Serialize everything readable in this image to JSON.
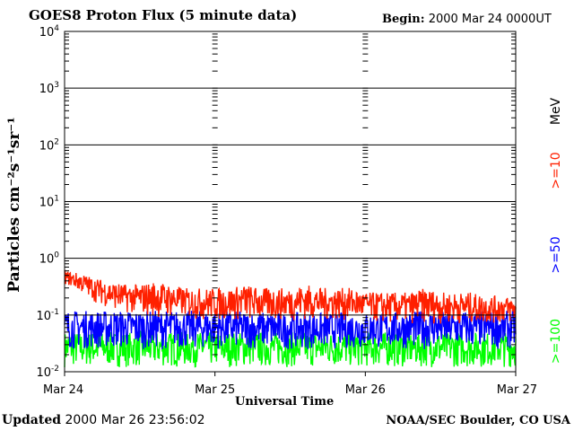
{
  "header": {
    "title": "GOES8 Proton Flux (5 minute data)",
    "begin_label": "Begin:",
    "begin_value": "2000 Mar 24 0000UT"
  },
  "footer": {
    "updated_label": "Updated",
    "updated_value": "2000 Mar 26 23:56:02",
    "credit": "NOAA/SEC Boulder, CO USA"
  },
  "legend": {
    "unit": "MeV",
    "items": [
      {
        "label": ">=10",
        "color": "#ff2000"
      },
      {
        "label": ">=50",
        "color": "#0000ff"
      },
      {
        "label": ">=100",
        "color": "#00ff00"
      }
    ]
  },
  "chart_data": {
    "type": "line",
    "title": "GOES8 Proton Flux (5 minute data)",
    "xlabel": "Universal Time",
    "ylabel": "Particles cm⁻²s⁻¹sr⁻¹",
    "yscale": "log",
    "ylim": [
      0.01,
      10000
    ],
    "y_ticks": [
      {
        "value": 0.01,
        "base": "10",
        "exp": "-2"
      },
      {
        "value": 0.1,
        "base": "10",
        "exp": "-1"
      },
      {
        "value": 1,
        "base": "10",
        "exp": "0"
      },
      {
        "value": 10,
        "base": "10",
        "exp": "1"
      },
      {
        "value": 100,
        "base": "10",
        "exp": "2"
      },
      {
        "value": 1000,
        "base": "10",
        "exp": "3"
      },
      {
        "value": 10000,
        "base": "10",
        "exp": "4"
      }
    ],
    "x_ticks": [
      "Mar 24",
      "Mar 25",
      "Mar 26",
      "Mar 27"
    ],
    "xlim_days": [
      0,
      3
    ],
    "grid": true,
    "series": [
      {
        "name": ">=10 MeV",
        "color": "#ff2000",
        "day": [
          0,
          0.1,
          0.2,
          0.3,
          0.4,
          0.5,
          0.6,
          0.7,
          0.8,
          0.9,
          1.0,
          1.1,
          1.2,
          1.3,
          1.4,
          1.5,
          1.6,
          1.7,
          1.8,
          1.9,
          2.0,
          2.1,
          2.2,
          2.3,
          2.4,
          2.5,
          2.6,
          2.7,
          2.8,
          2.9,
          3.0
        ],
        "low": [
          0.35,
          0.25,
          0.17,
          0.13,
          0.11,
          0.1,
          0.09,
          0.09,
          0.09,
          0.08,
          0.08,
          0.08,
          0.08,
          0.08,
          0.08,
          0.08,
          0.08,
          0.08,
          0.08,
          0.08,
          0.08,
          0.07,
          0.07,
          0.07,
          0.07,
          0.07,
          0.07,
          0.07,
          0.07,
          0.07,
          0.07
        ],
        "high": [
          0.6,
          0.55,
          0.45,
          0.4,
          0.35,
          0.35,
          0.4,
          0.35,
          0.3,
          0.3,
          0.3,
          0.3,
          0.35,
          0.3,
          0.3,
          0.3,
          0.35,
          0.3,
          0.3,
          0.3,
          0.25,
          0.25,
          0.25,
          0.25,
          0.3,
          0.25,
          0.25,
          0.25,
          0.22,
          0.22,
          0.2
        ]
      },
      {
        "name": ">=50 MeV",
        "color": "#0000ff",
        "day": [
          0,
          0.5,
          1.0,
          1.5,
          2.0,
          2.5,
          3.0
        ],
        "low": [
          0.025,
          0.025,
          0.025,
          0.025,
          0.025,
          0.025,
          0.025
        ],
        "high": [
          0.12,
          0.12,
          0.12,
          0.11,
          0.11,
          0.12,
          0.12
        ]
      },
      {
        "name": ">=100 MeV",
        "color": "#00ff00",
        "day": [
          0,
          0.5,
          1.0,
          1.5,
          2.0,
          2.5,
          3.0
        ],
        "low": [
          0.012,
          0.012,
          0.012,
          0.012,
          0.012,
          0.012,
          0.012
        ],
        "high": [
          0.05,
          0.05,
          0.05,
          0.05,
          0.05,
          0.05,
          0.05
        ]
      }
    ]
  }
}
